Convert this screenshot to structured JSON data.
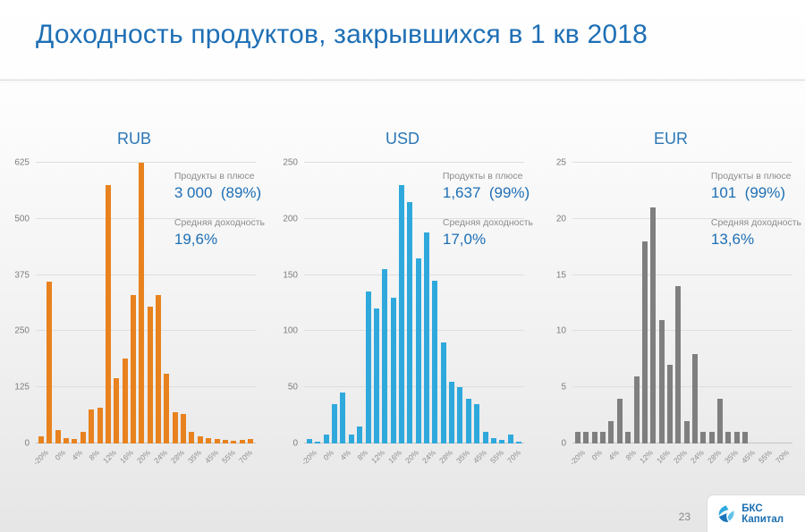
{
  "title": "Доходность продуктов, закрывшихся в 1 кв 2018",
  "page_number": "23",
  "logo_text": "БКС Капитал",
  "accent_color": "#1e6fb5",
  "chart_data": [
    {
      "type": "bar",
      "title": "RUB",
      "color": "#e8821e",
      "ylim": [
        0,
        625
      ],
      "y_ticks": [
        0,
        125,
        250,
        375,
        500,
        625
      ],
      "x_tick_labels": [
        "-20%",
        "0%",
        "4%",
        "8%",
        "12%",
        "16%",
        "20%",
        "24%",
        "28%",
        "35%",
        "45%",
        "55%",
        "70%"
      ],
      "values": [
        16,
        360,
        30,
        12,
        10,
        25,
        75,
        80,
        575,
        145,
        190,
        330,
        625,
        305,
        330,
        155,
        70,
        65,
        25,
        15,
        12,
        10,
        8,
        6,
        8,
        10
      ],
      "grid": true,
      "legend": "none",
      "annotations": {
        "products_label": "Продукты в плюсе",
        "products_value": "3 000  (89%)",
        "avg_label": "Средняя доходность",
        "avg_value": "19,6%"
      }
    },
    {
      "type": "bar",
      "title": "USD",
      "color": "#2fa9dc",
      "ylim": [
        0,
        250
      ],
      "y_ticks": [
        0,
        50,
        100,
        150,
        200,
        250
      ],
      "x_tick_labels": [
        "-20%",
        "0%",
        "4%",
        "8%",
        "12%",
        "16%",
        "20%",
        "24%",
        "28%",
        "35%",
        "45%",
        "55%",
        "70%"
      ],
      "values": [
        4,
        2,
        8,
        35,
        45,
        8,
        15,
        135,
        120,
        155,
        130,
        230,
        215,
        165,
        188,
        145,
        90,
        55,
        50,
        40,
        35,
        10,
        5,
        3,
        8,
        2
      ],
      "grid": true,
      "legend": "none",
      "annotations": {
        "products_label": "Продукты в плюсе",
        "products_value": "1,637  (99%)",
        "avg_label": "Средняя доходность",
        "avg_value": "17,0%"
      }
    },
    {
      "type": "bar",
      "title": "EUR",
      "color": "#7f7f7f",
      "ylim": [
        0,
        25
      ],
      "y_ticks": [
        0,
        5,
        10,
        15,
        20,
        25
      ],
      "x_tick_labels": [
        "-20%",
        "0%",
        "4%",
        "8%",
        "12%",
        "16%",
        "20%",
        "24%",
        "28%",
        "35%",
        "45%",
        "55%",
        "70%"
      ],
      "values": [
        1,
        1,
        1,
        1,
        2,
        4,
        1,
        6,
        18,
        21,
        11,
        7,
        14,
        2,
        8,
        1,
        1,
        4,
        1,
        1,
        1,
        0,
        0,
        0,
        0,
        0
      ],
      "grid": true,
      "legend": "none",
      "annotations": {
        "products_label": "Продукты в плюсе",
        "products_value": "101  (99%)",
        "avg_label": "Средняя доходность",
        "avg_value": "13,6%"
      }
    }
  ]
}
